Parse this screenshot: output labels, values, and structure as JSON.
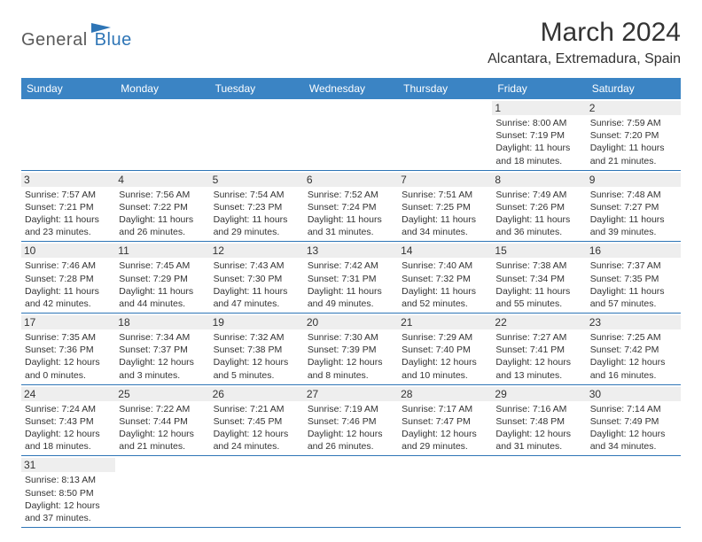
{
  "brand": {
    "part1": "General",
    "part2": "Blue"
  },
  "title": "March 2024",
  "location": "Alcantara, Extremadura, Spain",
  "colors": {
    "header_bg": "#3b84c4",
    "border": "#2e75b6",
    "daynum_bg": "#eeeeee",
    "text": "#333333",
    "brand_blue": "#2e75b6",
    "brand_gray": "#5a5a5a"
  },
  "weekdays": [
    "Sunday",
    "Monday",
    "Tuesday",
    "Wednesday",
    "Thursday",
    "Friday",
    "Saturday"
  ],
  "weeks": [
    [
      {
        "n": "",
        "sr": "",
        "ss": "",
        "dl": ""
      },
      {
        "n": "",
        "sr": "",
        "ss": "",
        "dl": ""
      },
      {
        "n": "",
        "sr": "",
        "ss": "",
        "dl": ""
      },
      {
        "n": "",
        "sr": "",
        "ss": "",
        "dl": ""
      },
      {
        "n": "",
        "sr": "",
        "ss": "",
        "dl": ""
      },
      {
        "n": "1",
        "sr": "Sunrise: 8:00 AM",
        "ss": "Sunset: 7:19 PM",
        "dl": "Daylight: 11 hours and 18 minutes."
      },
      {
        "n": "2",
        "sr": "Sunrise: 7:59 AM",
        "ss": "Sunset: 7:20 PM",
        "dl": "Daylight: 11 hours and 21 minutes."
      }
    ],
    [
      {
        "n": "3",
        "sr": "Sunrise: 7:57 AM",
        "ss": "Sunset: 7:21 PM",
        "dl": "Daylight: 11 hours and 23 minutes."
      },
      {
        "n": "4",
        "sr": "Sunrise: 7:56 AM",
        "ss": "Sunset: 7:22 PM",
        "dl": "Daylight: 11 hours and 26 minutes."
      },
      {
        "n": "5",
        "sr": "Sunrise: 7:54 AM",
        "ss": "Sunset: 7:23 PM",
        "dl": "Daylight: 11 hours and 29 minutes."
      },
      {
        "n": "6",
        "sr": "Sunrise: 7:52 AM",
        "ss": "Sunset: 7:24 PM",
        "dl": "Daylight: 11 hours and 31 minutes."
      },
      {
        "n": "7",
        "sr": "Sunrise: 7:51 AM",
        "ss": "Sunset: 7:25 PM",
        "dl": "Daylight: 11 hours and 34 minutes."
      },
      {
        "n": "8",
        "sr": "Sunrise: 7:49 AM",
        "ss": "Sunset: 7:26 PM",
        "dl": "Daylight: 11 hours and 36 minutes."
      },
      {
        "n": "9",
        "sr": "Sunrise: 7:48 AM",
        "ss": "Sunset: 7:27 PM",
        "dl": "Daylight: 11 hours and 39 minutes."
      }
    ],
    [
      {
        "n": "10",
        "sr": "Sunrise: 7:46 AM",
        "ss": "Sunset: 7:28 PM",
        "dl": "Daylight: 11 hours and 42 minutes."
      },
      {
        "n": "11",
        "sr": "Sunrise: 7:45 AM",
        "ss": "Sunset: 7:29 PM",
        "dl": "Daylight: 11 hours and 44 minutes."
      },
      {
        "n": "12",
        "sr": "Sunrise: 7:43 AM",
        "ss": "Sunset: 7:30 PM",
        "dl": "Daylight: 11 hours and 47 minutes."
      },
      {
        "n": "13",
        "sr": "Sunrise: 7:42 AM",
        "ss": "Sunset: 7:31 PM",
        "dl": "Daylight: 11 hours and 49 minutes."
      },
      {
        "n": "14",
        "sr": "Sunrise: 7:40 AM",
        "ss": "Sunset: 7:32 PM",
        "dl": "Daylight: 11 hours and 52 minutes."
      },
      {
        "n": "15",
        "sr": "Sunrise: 7:38 AM",
        "ss": "Sunset: 7:34 PM",
        "dl": "Daylight: 11 hours and 55 minutes."
      },
      {
        "n": "16",
        "sr": "Sunrise: 7:37 AM",
        "ss": "Sunset: 7:35 PM",
        "dl": "Daylight: 11 hours and 57 minutes."
      }
    ],
    [
      {
        "n": "17",
        "sr": "Sunrise: 7:35 AM",
        "ss": "Sunset: 7:36 PM",
        "dl": "Daylight: 12 hours and 0 minutes."
      },
      {
        "n": "18",
        "sr": "Sunrise: 7:34 AM",
        "ss": "Sunset: 7:37 PM",
        "dl": "Daylight: 12 hours and 3 minutes."
      },
      {
        "n": "19",
        "sr": "Sunrise: 7:32 AM",
        "ss": "Sunset: 7:38 PM",
        "dl": "Daylight: 12 hours and 5 minutes."
      },
      {
        "n": "20",
        "sr": "Sunrise: 7:30 AM",
        "ss": "Sunset: 7:39 PM",
        "dl": "Daylight: 12 hours and 8 minutes."
      },
      {
        "n": "21",
        "sr": "Sunrise: 7:29 AM",
        "ss": "Sunset: 7:40 PM",
        "dl": "Daylight: 12 hours and 10 minutes."
      },
      {
        "n": "22",
        "sr": "Sunrise: 7:27 AM",
        "ss": "Sunset: 7:41 PM",
        "dl": "Daylight: 12 hours and 13 minutes."
      },
      {
        "n": "23",
        "sr": "Sunrise: 7:25 AM",
        "ss": "Sunset: 7:42 PM",
        "dl": "Daylight: 12 hours and 16 minutes."
      }
    ],
    [
      {
        "n": "24",
        "sr": "Sunrise: 7:24 AM",
        "ss": "Sunset: 7:43 PM",
        "dl": "Daylight: 12 hours and 18 minutes."
      },
      {
        "n": "25",
        "sr": "Sunrise: 7:22 AM",
        "ss": "Sunset: 7:44 PM",
        "dl": "Daylight: 12 hours and 21 minutes."
      },
      {
        "n": "26",
        "sr": "Sunrise: 7:21 AM",
        "ss": "Sunset: 7:45 PM",
        "dl": "Daylight: 12 hours and 24 minutes."
      },
      {
        "n": "27",
        "sr": "Sunrise: 7:19 AM",
        "ss": "Sunset: 7:46 PM",
        "dl": "Daylight: 12 hours and 26 minutes."
      },
      {
        "n": "28",
        "sr": "Sunrise: 7:17 AM",
        "ss": "Sunset: 7:47 PM",
        "dl": "Daylight: 12 hours and 29 minutes."
      },
      {
        "n": "29",
        "sr": "Sunrise: 7:16 AM",
        "ss": "Sunset: 7:48 PM",
        "dl": "Daylight: 12 hours and 31 minutes."
      },
      {
        "n": "30",
        "sr": "Sunrise: 7:14 AM",
        "ss": "Sunset: 7:49 PM",
        "dl": "Daylight: 12 hours and 34 minutes."
      }
    ],
    [
      {
        "n": "31",
        "sr": "Sunrise: 8:13 AM",
        "ss": "Sunset: 8:50 PM",
        "dl": "Daylight: 12 hours and 37 minutes."
      },
      {
        "n": "",
        "sr": "",
        "ss": "",
        "dl": ""
      },
      {
        "n": "",
        "sr": "",
        "ss": "",
        "dl": ""
      },
      {
        "n": "",
        "sr": "",
        "ss": "",
        "dl": ""
      },
      {
        "n": "",
        "sr": "",
        "ss": "",
        "dl": ""
      },
      {
        "n": "",
        "sr": "",
        "ss": "",
        "dl": ""
      },
      {
        "n": "",
        "sr": "",
        "ss": "",
        "dl": ""
      }
    ]
  ]
}
